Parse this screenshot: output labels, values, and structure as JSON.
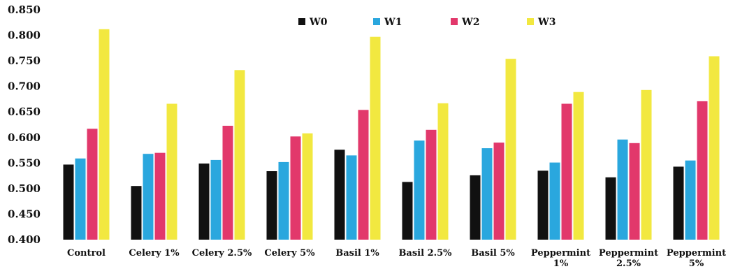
{
  "chart_data": {
    "type": "bar",
    "categories": [
      [
        "Control"
      ],
      [
        "Celery 1%"
      ],
      [
        "Celery 2.5%"
      ],
      [
        "Celery 5%"
      ],
      [
        "Basil 1%"
      ],
      [
        "Basil 2.5%"
      ],
      [
        "Basil 5%"
      ],
      [
        "Peppermint",
        "1%"
      ],
      [
        "Peppermint",
        "2.5%"
      ],
      [
        "Peppermint",
        "5%"
      ]
    ],
    "series": [
      {
        "name": "W0",
        "color": "#111111",
        "values": [
          0.547,
          0.505,
          0.549,
          0.534,
          0.576,
          0.513,
          0.526,
          0.535,
          0.522,
          0.543
        ]
      },
      {
        "name": "W1",
        "color": "#2aa7de",
        "values": [
          0.559,
          0.568,
          0.556,
          0.552,
          0.565,
          0.594,
          0.579,
          0.551,
          0.596,
          0.555
        ]
      },
      {
        "name": "W2",
        "color": "#e2386b",
        "values": [
          0.617,
          0.57,
          0.623,
          0.602,
          0.654,
          0.615,
          0.59,
          0.666,
          0.589,
          0.671
        ]
      },
      {
        "name": "W3",
        "color": "#f2e840",
        "values": [
          0.812,
          0.666,
          0.732,
          0.608,
          0.797,
          0.667,
          0.754,
          0.689,
          0.693,
          0.759
        ]
      }
    ],
    "yticks": [
      "0.400",
      "0.450",
      "0.500",
      "0.550",
      "0.600",
      "0.650",
      "0.700",
      "0.750",
      "0.800",
      "0.850"
    ],
    "ylim": [
      0.4,
      0.85
    ],
    "legend": "top-center",
    "grid": false,
    "title": "",
    "xlabel": "",
    "ylabel": ""
  }
}
